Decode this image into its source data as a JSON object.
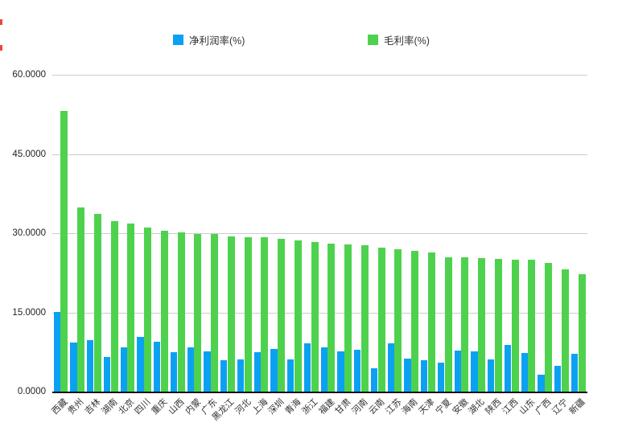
{
  "legend": {
    "items": [
      {
        "label": "净利润率(%)",
        "color": "#0aa1f2"
      },
      {
        "label": "毛利率(%)",
        "color": "#4ed24e"
      }
    ]
  },
  "chart_data": {
    "type": "bar",
    "title": "",
    "xlabel": "",
    "ylabel": "",
    "categories": [
      "西藏",
      "贵州",
      "吉林",
      "湖南",
      "北京",
      "四川",
      "重庆",
      "山西",
      "内蒙",
      "广东",
      "黑龙江",
      "河北",
      "上海",
      "深圳",
      "青海",
      "浙江",
      "福建",
      "甘肃",
      "河南",
      "云南",
      "江苏",
      "海南",
      "天津",
      "宁夏",
      "安徽",
      "湖北",
      "陕西",
      "江西",
      "山东",
      "广西",
      "辽宁",
      "新疆"
    ],
    "series": [
      {
        "name": "净利润率(%)",
        "color": "#0aa1f2",
        "values": [
          15.1,
          9.3,
          9.7,
          6.5,
          8.4,
          10.3,
          9.4,
          7.4,
          8.4,
          7.6,
          6.0,
          6.1,
          7.5,
          8.1,
          6.1,
          9.2,
          8.3,
          7.6,
          7.9,
          4.4,
          9.1,
          6.3,
          5.9,
          5.5,
          7.8,
          7.6,
          6.1,
          8.9,
          7.3,
          3.2,
          4.9,
          7.2
        ]
      },
      {
        "name": "毛利率(%)",
        "color": "#4ed24e",
        "values": [
          53.1,
          34.9,
          33.6,
          32.3,
          31.9,
          31.1,
          30.5,
          30.1,
          29.9,
          29.8,
          29.4,
          29.2,
          29.3,
          29.0,
          28.7,
          28.4,
          28.0,
          27.9,
          27.7,
          27.2,
          27.0,
          26.7,
          26.4,
          25.5,
          25.4,
          25.3,
          25.2,
          25.0,
          24.9,
          24.3,
          23.2,
          22.2
        ]
      }
    ],
    "ylim": [
      0,
      60
    ],
    "yticks": [
      0,
      15,
      30,
      45,
      60
    ],
    "ytick_labels": [
      "0.0000",
      "15.0000",
      "30.0000",
      "45.0000",
      "60.0000"
    ],
    "grid": true,
    "legend_position": "top",
    "grid_color": "#cccccc",
    "axis_color": "#111111"
  },
  "artifacts": {
    "edge_mark_color": "#e8483b"
  }
}
